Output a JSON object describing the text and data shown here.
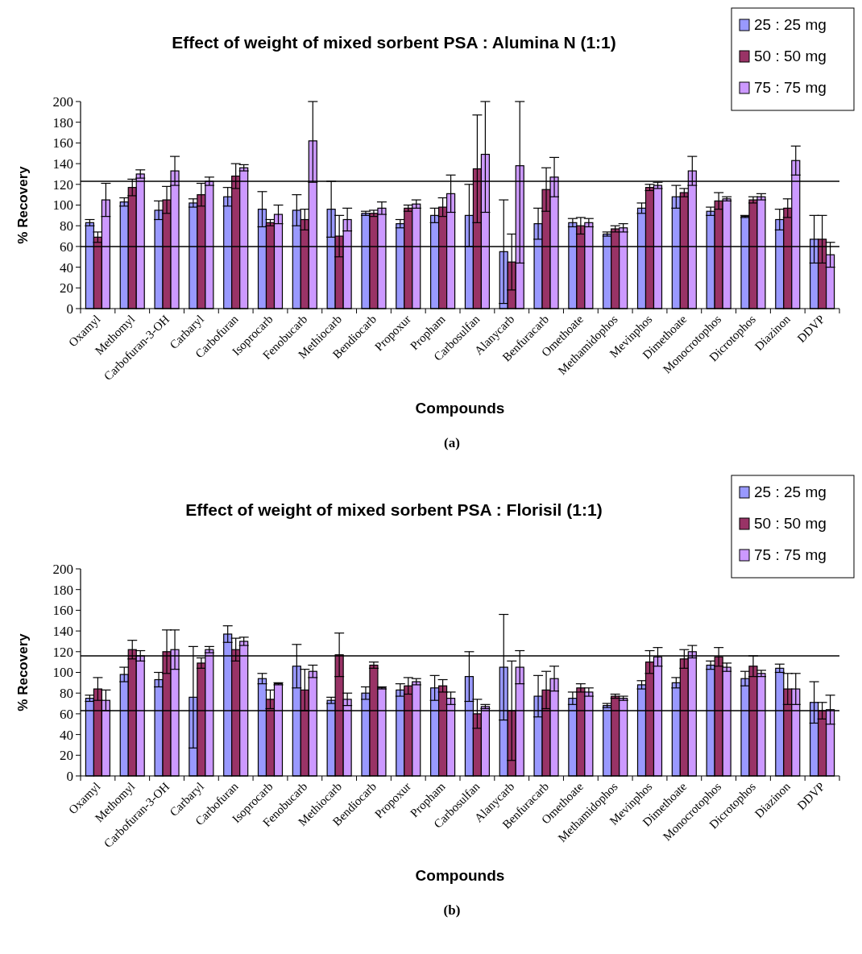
{
  "chart_data": [
    {
      "type": "bar",
      "title": "Effect of weight of mixed sorbent PSA : Alumina N (1:1)",
      "xlabel": "Compounds",
      "ylabel": "% Recovery",
      "annotations": [
        "(a)"
      ],
      "legend": "top right",
      "grid": false,
      "ylim": [
        0,
        200
      ],
      "yticks": [
        0,
        20,
        40,
        60,
        80,
        100,
        120,
        140,
        160,
        180,
        200
      ],
      "categories": [
        "Oxamyl",
        "Methomyl",
        "Carbofuran-3-OH",
        "Carbaryl",
        "Carbofuran",
        "Isoprocarb",
        "Fenobucarb",
        "Methiocarb",
        "Bendiocarb",
        "Propoxur",
        "Propham",
        "Carbosulfan",
        "Alanycarb",
        "Benfuracarb",
        "Omethoate",
        "Methamidophos",
        "Mevinphos",
        "Dimethoate",
        "Monocrotophos",
        "Dicrotophos",
        "Diazinon",
        "DDVP"
      ],
      "ref_lines": [
        {
          "axis": "y",
          "value": 123
        },
        {
          "axis": "y",
          "value": 60
        }
      ],
      "series": [
        {
          "name": "25 : 25 mg",
          "color": "#9999ff",
          "values": [
            83,
            103,
            95,
            102,
            108,
            96,
            95,
            96,
            92,
            82,
            90,
            90,
            55,
            82,
            83,
            72,
            97,
            108,
            94,
            89,
            86,
            67
          ],
          "errors": [
            3,
            4,
            9,
            4,
            9,
            17,
            15,
            27,
            2,
            4,
            7,
            30,
            50,
            15,
            4,
            2,
            5,
            11,
            4,
            1,
            10,
            23
          ]
        },
        {
          "name": "50 : 50 mg",
          "color": "#993366",
          "values": [
            69,
            117,
            105,
            110,
            128,
            83,
            86,
            70,
            92,
            97,
            98,
            135,
            45,
            115,
            80,
            77,
            117,
            112,
            104,
            105,
            97,
            67
          ],
          "errors": [
            5,
            8,
            13,
            11,
            12,
            3,
            10,
            20,
            3,
            3,
            9,
            52,
            27,
            21,
            8,
            3,
            3,
            4,
            8,
            3,
            9,
            23
          ]
        },
        {
          "name": "75 : 75 mg",
          "color": "#cc99ff",
          "values": [
            105,
            130,
            133,
            123,
            136,
            91,
            162,
            86,
            97,
            101,
            111,
            149,
            138,
            127,
            83,
            78,
            119,
            133,
            106,
            108,
            143,
            52
          ],
          "errors": [
            16,
            4,
            14,
            4,
            3,
            9,
            [
              122,
              200
            ],
            11,
            6,
            4,
            18,
            [
              93,
              200
            ],
            [
              44,
              200
            ],
            19,
            4,
            4,
            3,
            14,
            2,
            3,
            14,
            12
          ]
        }
      ]
    },
    {
      "type": "bar",
      "title": "Effect of weight of mixed sorbent PSA : Florisil (1:1)",
      "xlabel": "Compounds",
      "ylabel": "% Recovery",
      "annotations": [
        "(b)"
      ],
      "legend": "top right",
      "grid": false,
      "ylim": [
        0,
        200
      ],
      "yticks": [
        0,
        20,
        40,
        60,
        80,
        100,
        120,
        140,
        160,
        180,
        200
      ],
      "categories": [
        "Oxamyl",
        "Methomyl",
        "Carbofuran-3-OH",
        "Carbaryl",
        "Carbofuran",
        "Isoprocarb",
        "Fenobucarb",
        "Methiocarb",
        "Bendiocarb",
        "Propoxur",
        "Propham",
        "Carbosulfan",
        "Alanycarb",
        "Benfuracarb",
        "Omethoate",
        "Methamidophos",
        "Mevinphos",
        "Dimethoate",
        "Monocrotophos",
        "Dicrotophos",
        "Diazinon",
        "DDVP"
      ],
      "ref_lines": [
        {
          "axis": "y",
          "value": 116
        },
        {
          "axis": "y",
          "value": 63
        }
      ],
      "series": [
        {
          "name": "25 : 25 mg",
          "color": "#9999ff",
          "values": [
            75,
            98,
            93,
            76,
            137,
            94,
            106,
            73,
            80,
            83,
            85,
            96,
            105,
            77,
            75,
            68,
            88,
            90,
            107,
            94,
            104,
            71
          ],
          "errors": [
            3,
            7,
            7,
            49,
            8,
            5,
            21,
            3,
            6,
            6,
            12,
            24,
            51,
            20,
            6,
            2,
            4,
            5,
            4,
            7,
            4,
            20
          ]
        },
        {
          "name": "50 : 50 mg",
          "color": "#993366",
          "values": [
            84,
            122,
            120,
            109,
            122,
            74,
            83,
            117,
            107,
            87,
            87,
            60,
            63,
            83,
            85,
            77,
            110,
            113,
            115,
            106,
            84,
            63
          ],
          "errors": [
            11,
            9,
            21,
            5,
            11,
            9,
            20,
            21,
            3,
            8,
            6,
            14,
            48,
            18,
            4,
            2,
            11,
            9,
            9,
            10,
            15,
            8
          ]
        },
        {
          "name": "75 : 75 mg",
          "color": "#cc99ff",
          "values": [
            73,
            116,
            122,
            122,
            130,
            89,
            101,
            74,
            85,
            91,
            75,
            67,
            105,
            94,
            81,
            75,
            115,
            120,
            105,
            99,
            84,
            64
          ],
          "errors": [
            10,
            5,
            19,
            3,
            4,
            1,
            6,
            6,
            1,
            3,
            6,
            2,
            16,
            12,
            4,
            2,
            9,
            6,
            4,
            3,
            15,
            14
          ]
        }
      ]
    }
  ]
}
